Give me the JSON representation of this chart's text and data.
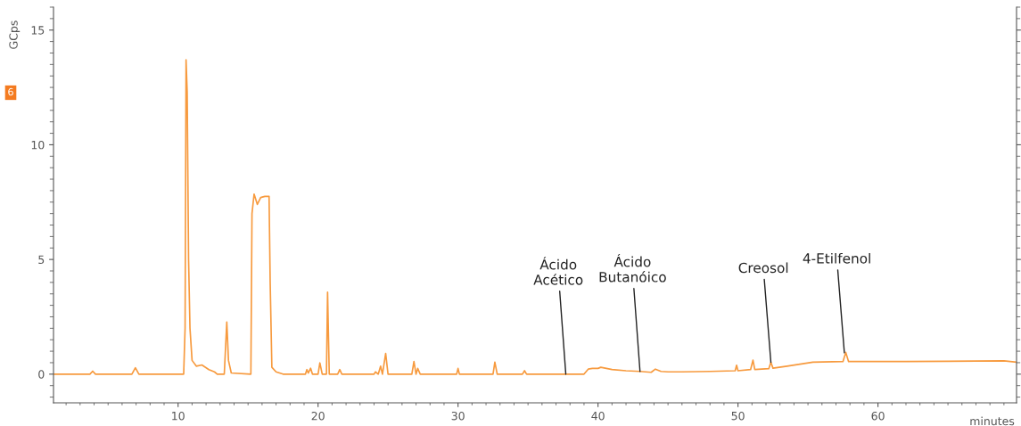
{
  "chart_data": {
    "type": "line",
    "xlabel": "minutes",
    "ylabel": "GCps",
    "xlim": [
      1.1,
      69.9
    ],
    "ylim": [
      -1.25,
      16
    ],
    "xticks": [
      10,
      20,
      30,
      40,
      50,
      60
    ],
    "yticks": [
      0,
      5,
      10,
      15
    ],
    "grid": false,
    "legend": false,
    "marker": "none",
    "line_style": "solid",
    "series": [
      {
        "color": "#f79a3e",
        "x": [
          1.1,
          3.7,
          3.9,
          4.1,
          6.7,
          6.95,
          7.2,
          10.4,
          10.5,
          10.57,
          10.65,
          10.75,
          10.85,
          11.0,
          11.3,
          11.7,
          12.2,
          12.6,
          12.8,
          13.3,
          13.48,
          13.6,
          13.8,
          15.2,
          15.28,
          15.43,
          15.66,
          15.9,
          16.2,
          16.5,
          16.58,
          16.7,
          17.0,
          17.5,
          19.1,
          19.2,
          19.3,
          19.47,
          19.6,
          20.0,
          20.13,
          20.3,
          20.6,
          20.68,
          20.8,
          21.4,
          21.55,
          21.7,
          24.0,
          24.1,
          24.3,
          24.47,
          24.6,
          24.83,
          25.0,
          26.7,
          26.85,
          27.0,
          27.12,
          27.3,
          29.9,
          30.0,
          30.1,
          32.5,
          32.63,
          32.8,
          34.6,
          34.75,
          34.9,
          39.0,
          39.3,
          39.6,
          40.0,
          40.2,
          41.0,
          42.0,
          43.0,
          43.8,
          44.1,
          44.5,
          45.0,
          46.0,
          48.0,
          49.8,
          49.9,
          50.0,
          50.9,
          51.07,
          51.2,
          52.2,
          52.35,
          52.5,
          53.5,
          55.35,
          57.5,
          57.7,
          57.9,
          60.0,
          65.0,
          69.0,
          69.9
        ],
        "values": [
          0.0,
          0.0,
          0.13,
          0.0,
          0.0,
          0.28,
          0.0,
          0.0,
          2.0,
          13.7,
          12.3,
          5.0,
          2.0,
          0.6,
          0.35,
          0.4,
          0.2,
          0.1,
          0.0,
          0.0,
          2.27,
          0.6,
          0.05,
          0.0,
          7.0,
          7.85,
          7.4,
          7.7,
          7.75,
          7.75,
          4.0,
          0.3,
          0.1,
          0.0,
          0.0,
          0.2,
          0.05,
          0.26,
          0.0,
          0.0,
          0.49,
          0.0,
          0.0,
          3.57,
          0.0,
          0.0,
          0.2,
          0.0,
          0.0,
          0.1,
          0.0,
          0.35,
          0.0,
          0.9,
          0.0,
          0.0,
          0.55,
          0.0,
          0.25,
          0.0,
          0.0,
          0.25,
          0.0,
          0.0,
          0.52,
          0.0,
          0.0,
          0.15,
          0.0,
          0.0,
          0.22,
          0.25,
          0.25,
          0.3,
          0.2,
          0.15,
          0.12,
          0.08,
          0.22,
          0.12,
          0.1,
          0.1,
          0.12,
          0.15,
          0.39,
          0.15,
          0.2,
          0.61,
          0.2,
          0.24,
          0.52,
          0.26,
          0.35,
          0.52,
          0.55,
          0.95,
          0.55,
          0.55,
          0.56,
          0.58,
          0.52
        ]
      }
    ],
    "annotations": [
      "6",
      {
        "text": "Ácido\nAcético",
        "x": 37.7,
        "y": 0.0
      },
      {
        "text": "Ácido\nButanóico",
        "x": 43.0,
        "y": 0.12
      },
      {
        "text": "Creosol",
        "x": 52.35,
        "y": 0.52
      },
      {
        "text": "4-Etilfenol",
        "x": 57.6,
        "y": 0.93
      }
    ]
  }
}
